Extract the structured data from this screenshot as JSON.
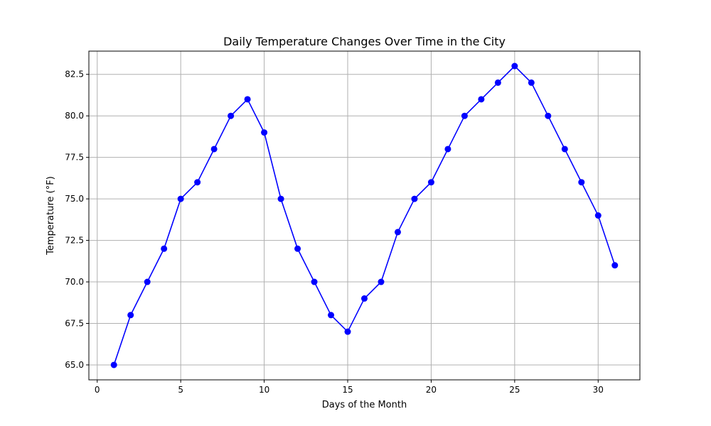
{
  "chart_data": {
    "type": "line",
    "title": "Daily Temperature Changes Over Time in the City",
    "xlabel": "Days of the Month",
    "ylabel": "Temperature (°F)",
    "xlim": [
      -0.5,
      32.5
    ],
    "ylim": [
      64.1,
      83.9
    ],
    "xticks": [
      0,
      5,
      10,
      15,
      20,
      25,
      30
    ],
    "xtick_labels": [
      "0",
      "5",
      "10",
      "15",
      "20",
      "25",
      "30"
    ],
    "yticks": [
      65.0,
      67.5,
      70.0,
      72.5,
      75.0,
      77.5,
      80.0,
      82.5
    ],
    "ytick_labels": [
      "65.0",
      "67.5",
      "70.0",
      "72.5",
      "75.0",
      "77.5",
      "80.0",
      "82.5"
    ],
    "grid": true,
    "series": [
      {
        "color": "#0000ff",
        "marker": "circle",
        "x": [
          1,
          2,
          3,
          4,
          5,
          6,
          7,
          8,
          9,
          10,
          11,
          12,
          13,
          14,
          15,
          16,
          17,
          18,
          19,
          20,
          21,
          22,
          23,
          24,
          25,
          26,
          27,
          28,
          29,
          30,
          31
        ],
        "y": [
          65,
          68,
          70,
          72,
          75,
          76,
          78,
          80,
          81,
          79,
          75,
          72,
          70,
          68,
          67,
          69,
          70,
          73,
          75,
          76,
          78,
          80,
          81,
          82,
          83,
          82,
          80,
          78,
          76,
          74,
          71
        ]
      }
    ]
  }
}
